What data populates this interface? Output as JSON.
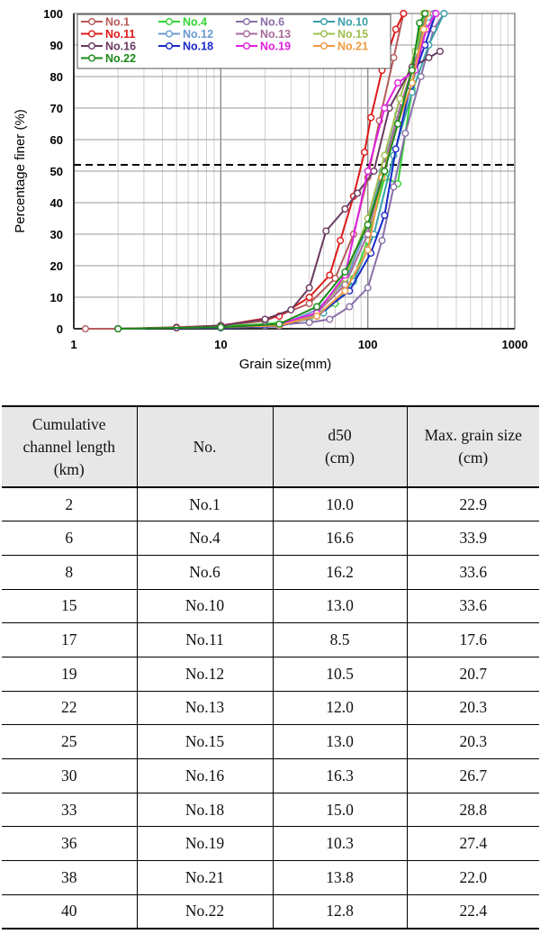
{
  "chart_data": {
    "type": "line",
    "xlabel": "Grain size(mm)",
    "ylabel": "Percentage finer (%)",
    "xscale": "log",
    "xlim": [
      1,
      1000
    ],
    "ylim": [
      0,
      100
    ],
    "x_ticks": [
      "1",
      "10",
      "100",
      "1000"
    ],
    "y_ticks": [
      "0",
      "10",
      "20",
      "30",
      "40",
      "50",
      "60",
      "70",
      "80",
      "90",
      "100"
    ],
    "grid": true,
    "legend_position": "top-left",
    "reference_line": {
      "y": 52,
      "style": "dashed"
    },
    "series": [
      {
        "name": "No.1",
        "color": "#b85a5a",
        "points": [
          [
            1.2,
            0
          ],
          [
            2,
            0
          ],
          [
            5,
            0.5
          ],
          [
            10,
            1
          ],
          [
            20,
            2.5
          ],
          [
            40,
            8
          ],
          [
            60,
            16
          ],
          [
            80,
            30
          ],
          [
            100,
            48
          ],
          [
            120,
            66
          ],
          [
            150,
            86
          ],
          [
            175,
            100
          ]
        ]
      },
      {
        "name": "No.4",
        "color": "#33d433",
        "points": [
          [
            2,
            0
          ],
          [
            5,
            0.3
          ],
          [
            10,
            0.8
          ],
          [
            20,
            1.5
          ],
          [
            40,
            3
          ],
          [
            60,
            8
          ],
          [
            80,
            16
          ],
          [
            100,
            28
          ],
          [
            130,
            48
          ],
          [
            160,
            46
          ],
          [
            200,
            76
          ],
          [
            230,
            95
          ],
          [
            250,
            100
          ]
        ]
      },
      {
        "name": "No.6",
        "color": "#8a6fa8",
        "points": [
          [
            2,
            0
          ],
          [
            10,
            0.5
          ],
          [
            20,
            1
          ],
          [
            40,
            2
          ],
          [
            55,
            3
          ],
          [
            75,
            7
          ],
          [
            100,
            13
          ],
          [
            125,
            28
          ],
          [
            150,
            45
          ],
          [
            180,
            62
          ],
          [
            230,
            80
          ],
          [
            280,
            95
          ],
          [
            330,
            100
          ]
        ]
      },
      {
        "name": "No.10",
        "color": "#3aa0a8",
        "points": [
          [
            2,
            0
          ],
          [
            10,
            0.5
          ],
          [
            25,
            1
          ],
          [
            50,
            5
          ],
          [
            80,
            15
          ],
          [
            110,
            30
          ],
          [
            150,
            55
          ],
          [
            200,
            75
          ],
          [
            260,
            90
          ],
          [
            330,
            100
          ]
        ]
      },
      {
        "name": "No.11",
        "color": "#e01818",
        "points": [
          [
            2,
            0
          ],
          [
            5,
            0.3
          ],
          [
            10,
            1
          ],
          [
            25,
            4
          ],
          [
            40,
            10
          ],
          [
            55,
            17
          ],
          [
            65,
            28
          ],
          [
            80,
            42
          ],
          [
            95,
            56
          ],
          [
            105,
            67
          ],
          [
            125,
            82
          ],
          [
            155,
            95
          ],
          [
            175,
            100
          ]
        ]
      },
      {
        "name": "No.12",
        "color": "#6a9ad0",
        "points": [
          [
            2,
            0
          ],
          [
            10,
            0.5
          ],
          [
            25,
            1
          ],
          [
            45,
            6
          ],
          [
            70,
            15
          ],
          [
            95,
            30
          ],
          [
            125,
            50
          ],
          [
            160,
            68
          ],
          [
            210,
            85
          ],
          [
            260,
            97
          ],
          [
            280,
            100
          ]
        ]
      },
      {
        "name": "No.13",
        "color": "#a86a9a",
        "points": [
          [
            2,
            0
          ],
          [
            10,
            0.5
          ],
          [
            25,
            1
          ],
          [
            45,
            5
          ],
          [
            70,
            14
          ],
          [
            100,
            30
          ],
          [
            130,
            52
          ],
          [
            170,
            72
          ],
          [
            220,
            88
          ],
          [
            250,
            100
          ]
        ]
      },
      {
        "name": "No.15",
        "color": "#a0c050",
        "points": [
          [
            2,
            0
          ],
          [
            10,
            0.5
          ],
          [
            25,
            1
          ],
          [
            45,
            5
          ],
          [
            70,
            16
          ],
          [
            100,
            35
          ],
          [
            130,
            55
          ],
          [
            165,
            73
          ],
          [
            210,
            88
          ],
          [
            240,
            100
          ]
        ]
      },
      {
        "name": "No.16",
        "color": "#6a3a60",
        "points": [
          [
            2,
            0
          ],
          [
            5,
            0.3
          ],
          [
            10,
            1
          ],
          [
            20,
            3
          ],
          [
            30,
            6
          ],
          [
            40,
            13
          ],
          [
            52,
            31
          ],
          [
            70,
            38
          ],
          [
            85,
            43
          ],
          [
            110,
            50
          ],
          [
            140,
            70
          ],
          [
            200,
            83
          ],
          [
            260,
            86
          ],
          [
            310,
            88
          ]
        ]
      },
      {
        "name": "No.18",
        "color": "#1a28c8",
        "points": [
          [
            2,
            0
          ],
          [
            10,
            0.3
          ],
          [
            25,
            0.8
          ],
          [
            45,
            4
          ],
          [
            75,
            12
          ],
          [
            105,
            24
          ],
          [
            130,
            36
          ],
          [
            155,
            57
          ],
          [
            195,
            77
          ],
          [
            245,
            90
          ],
          [
            290,
            100
          ]
        ]
      },
      {
        "name": "No.19",
        "color": "#e020e0",
        "points": [
          [
            2,
            0
          ],
          [
            10,
            0.5
          ],
          [
            25,
            1.5
          ],
          [
            45,
            5
          ],
          [
            70,
            17
          ],
          [
            100,
            50
          ],
          [
            130,
            70
          ],
          [
            160,
            78
          ],
          [
            210,
            82
          ],
          [
            250,
            95
          ],
          [
            290,
            100
          ]
        ]
      },
      {
        "name": "No.21",
        "color": "#f09a40",
        "points": [
          [
            2,
            0
          ],
          [
            10,
            0.5
          ],
          [
            25,
            1
          ],
          [
            45,
            4
          ],
          [
            70,
            12
          ],
          [
            100,
            25
          ],
          [
            125,
            48
          ],
          [
            160,
            65
          ],
          [
            200,
            78
          ],
          [
            240,
            95
          ],
          [
            255,
            100
          ]
        ]
      },
      {
        "name": "No.22",
        "color": "#188a18",
        "points": [
          [
            2,
            0
          ],
          [
            10,
            0.5
          ],
          [
            25,
            1.5
          ],
          [
            45,
            7
          ],
          [
            70,
            18
          ],
          [
            100,
            33
          ],
          [
            130,
            50
          ],
          [
            160,
            65
          ],
          [
            200,
            82
          ],
          [
            225,
            97
          ],
          [
            245,
            100
          ]
        ]
      }
    ]
  },
  "table": {
    "headers": [
      [
        "Cumulative",
        "channel length",
        "(km)"
      ],
      [
        "No."
      ],
      [
        "d50",
        "(cm)"
      ],
      [
        "Max. grain size",
        "(cm)"
      ]
    ],
    "rows": [
      [
        "2",
        "No.1",
        "10.0",
        "22.9"
      ],
      [
        "6",
        "No.4",
        "16.6",
        "33.9"
      ],
      [
        "8",
        "No.6",
        "16.2",
        "33.6"
      ],
      [
        "15",
        "No.10",
        "13.0",
        "33.6"
      ],
      [
        "17",
        "No.11",
        "8.5",
        "17.6"
      ],
      [
        "19",
        "No.12",
        "10.5",
        "20.7"
      ],
      [
        "22",
        "No.13",
        "12.0",
        "20.3"
      ],
      [
        "25",
        "No.15",
        "13.0",
        "20.3"
      ],
      [
        "30",
        "No.16",
        "16.3",
        "26.7"
      ],
      [
        "33",
        "No.18",
        "15.0",
        "28.8"
      ],
      [
        "36",
        "No.19",
        "10.3",
        "27.4"
      ],
      [
        "38",
        "No.21",
        "13.8",
        "22.0"
      ],
      [
        "40",
        "No.22",
        "12.8",
        "22.4"
      ]
    ]
  }
}
